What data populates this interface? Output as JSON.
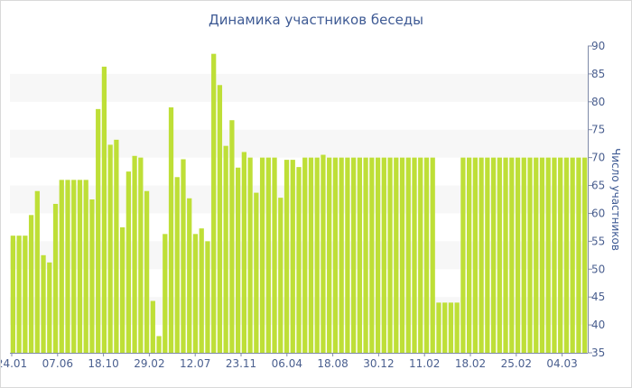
{
  "chart_data": {
    "type": "bar",
    "title": "Динамика участников беседы",
    "ylabel": "Число участников",
    "xlabel": "",
    "ylim": [
      35,
      90
    ],
    "yticks": [
      35,
      40,
      45,
      50,
      55,
      60,
      65,
      70,
      75,
      80,
      85,
      90
    ],
    "xtick_labels": [
      "24.01",
      "07.06",
      "18.10",
      "29.02",
      "12.07",
      "23.11",
      "06.04",
      "18.08",
      "30.12",
      "11.02",
      "18.02",
      "25.02",
      "04.03"
    ],
    "y_axis_position": "right",
    "grid": "alternating horizontal bands",
    "bar_color": "#bedf37",
    "values": [
      56,
      56,
      56,
      59.7,
      64,
      52.5,
      51.2,
      61.7,
      66,
      66,
      66,
      66,
      66,
      62.5,
      78.7,
      86.3,
      72.3,
      73.2,
      57.5,
      67.5,
      70.3,
      70,
      64,
      44.3,
      38,
      56.3,
      79,
      66.5,
      69.7,
      62.7,
      56.3,
      57.3,
      55,
      88.6,
      83,
      72.1,
      76.7,
      68.2,
      71,
      70,
      63.7,
      70,
      70,
      70,
      62.8,
      69.6,
      69.6,
      68.3,
      70,
      70,
      70,
      70.5,
      70,
      70,
      70,
      70,
      70,
      70,
      70,
      70,
      70,
      70,
      70,
      70,
      70,
      70,
      70,
      70,
      70,
      70,
      44,
      44,
      44,
      44,
      70,
      70,
      70,
      70,
      70,
      70,
      70,
      70,
      70,
      70,
      70,
      70,
      70,
      70,
      70,
      70,
      70,
      70,
      70,
      70,
      70
    ]
  }
}
